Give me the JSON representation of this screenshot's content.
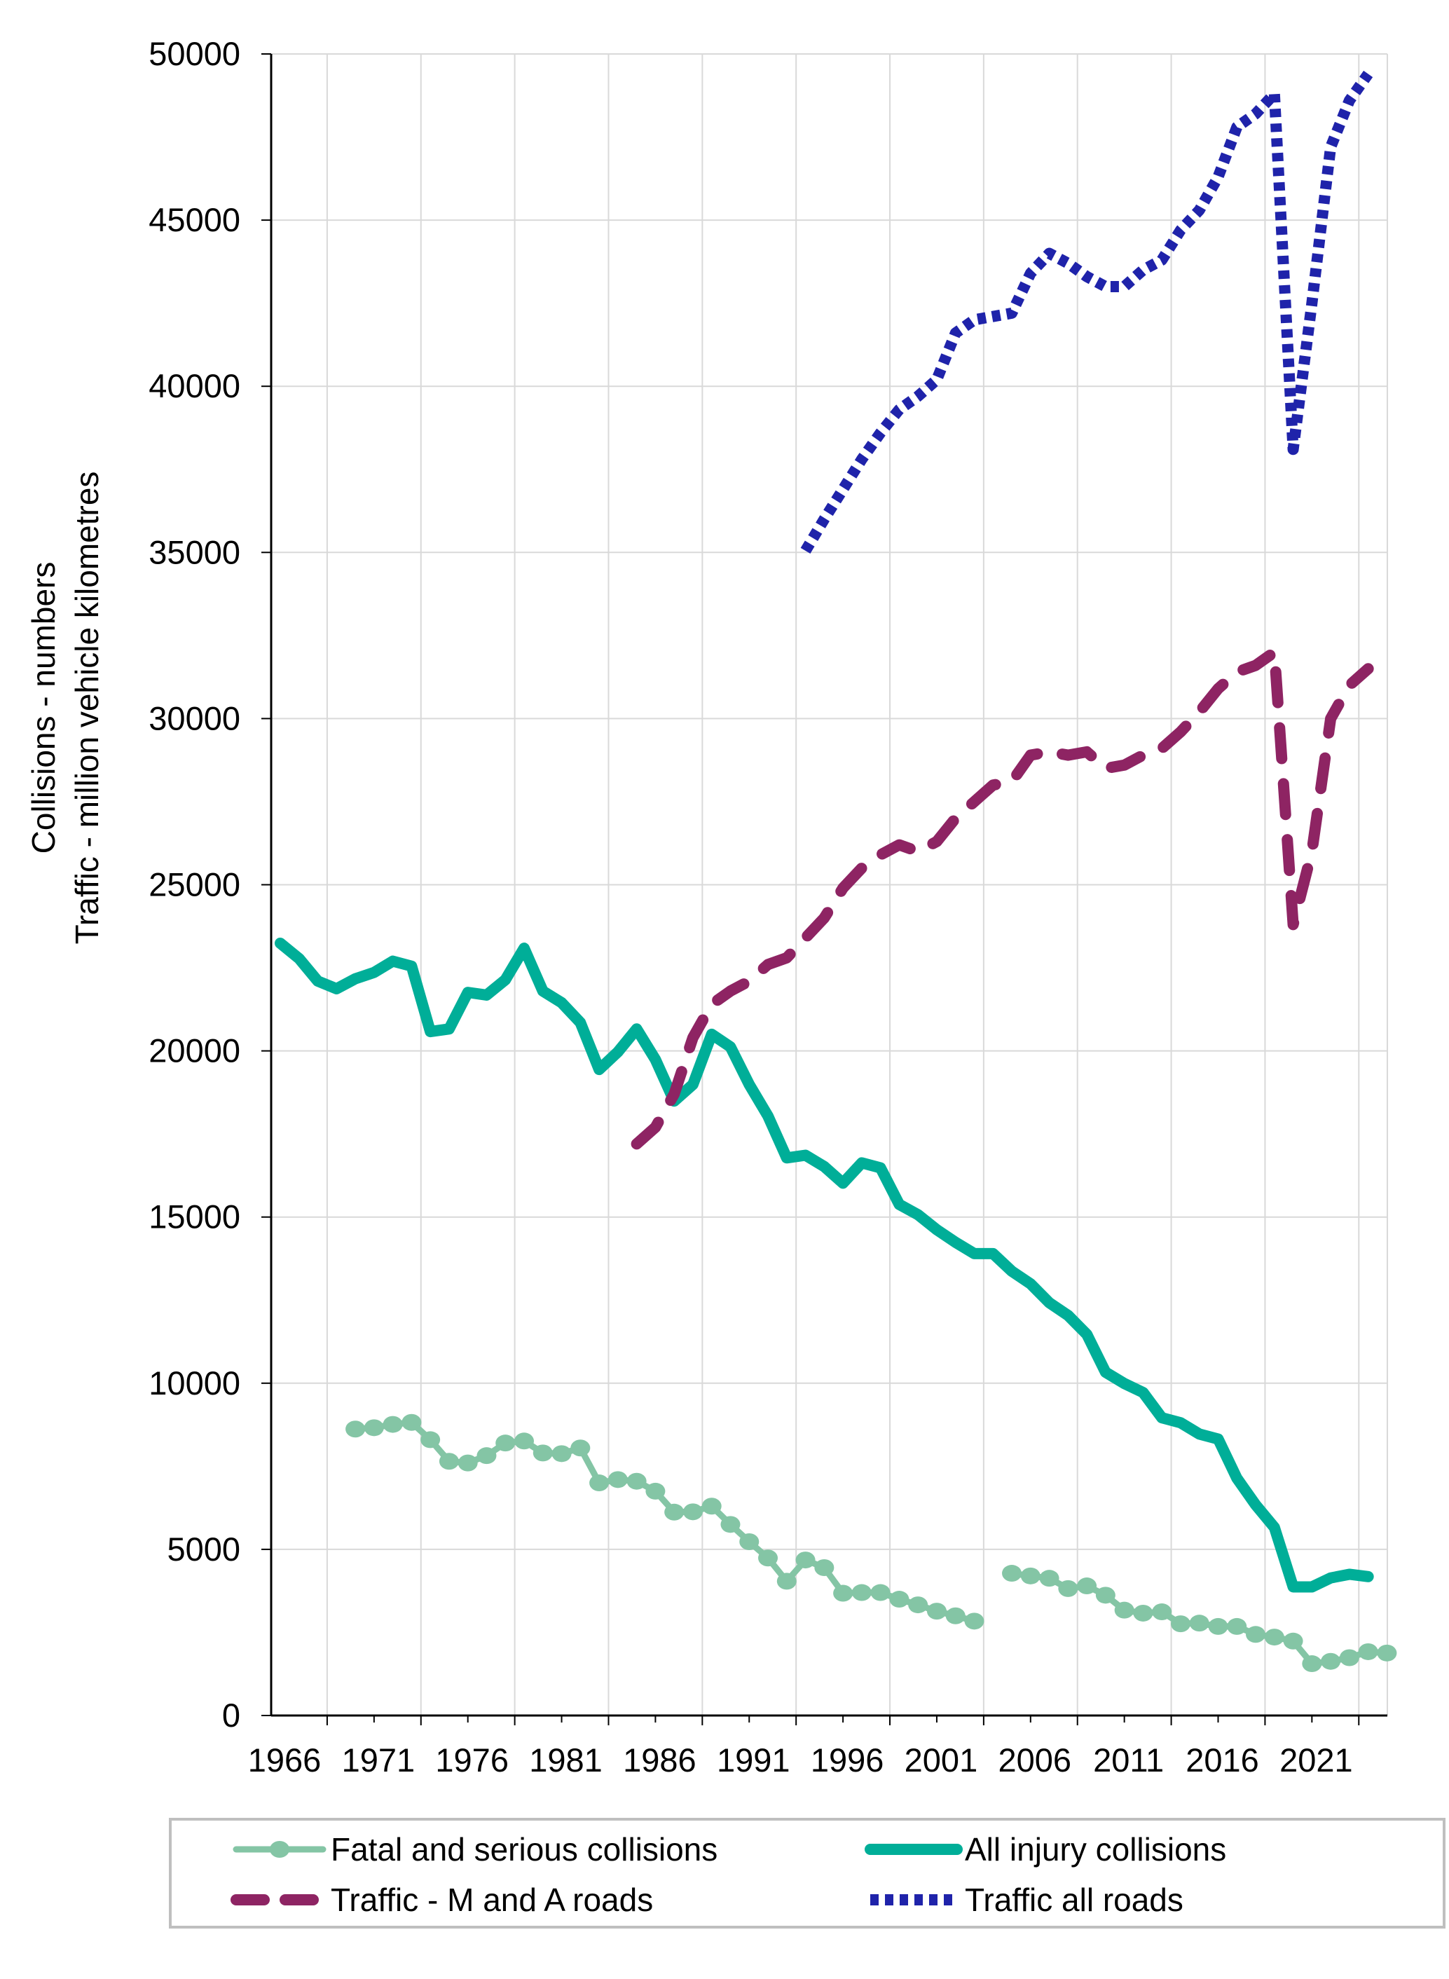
{
  "chart_data": {
    "type": "line",
    "title": "",
    "xlabel": "",
    "ylabel": [
      "Collisions - numbers",
      "Traffic -  million vehicle kilometres"
    ],
    "ylim": [
      0,
      50000
    ],
    "yticks": [
      0,
      5000,
      10000,
      15000,
      20000,
      25000,
      30000,
      35000,
      40000,
      45000,
      50000
    ],
    "xticks": [
      "1966",
      "1971",
      "1976",
      "1981",
      "1986",
      "1991",
      "1996",
      "2001",
      "2006",
      "2011",
      "2016",
      "2021"
    ],
    "grid": true,
    "legend_position": "bottom",
    "x_start": 1966,
    "x_end": 2024,
    "series": [
      {
        "name": "Fatal and serious collisions",
        "color": "#84C5A5",
        "style": "line-markers",
        "start": 1970,
        "values": [
          8620,
          8660,
          8760,
          8820,
          8300,
          7650,
          7600,
          7820,
          8200,
          8260,
          7900,
          7880,
          8050,
          7000,
          7100,
          7050,
          6750,
          6120,
          6130,
          6300,
          5750,
          5230,
          4740,
          4040,
          4680,
          4450,
          3680,
          3700,
          3700,
          3500,
          3330,
          3140,
          3000,
          2840,
          null,
          4280,
          4200,
          4130,
          3820,
          3900,
          3620,
          3170,
          3080,
          3120,
          2760,
          2780,
          2680,
          2680,
          2440,
          2360,
          2240,
          1560,
          1630,
          1740,
          1920,
          1880
        ]
      },
      {
        "name": "All injury collisions",
        "color": "#00AE98",
        "style": "solid",
        "start": 1966,
        "values": [
          23240,
          22780,
          22100,
          21870,
          22170,
          22360,
          22700,
          22550,
          20580,
          20660,
          21760,
          21680,
          22140,
          23090,
          21800,
          21450,
          20850,
          19440,
          19970,
          20660,
          19740,
          18490,
          18990,
          20500,
          20120,
          18990,
          18040,
          16780,
          16860,
          16520,
          16020,
          16630,
          16480,
          15380,
          15070,
          14620,
          14240,
          13900,
          13900,
          13370,
          12990,
          12420,
          12040,
          11470,
          10330,
          9990,
          9720,
          8960,
          8810,
          8470,
          8320,
          7140,
          6340,
          5660,
          3870,
          3870,
          4140,
          4250,
          4180
        ]
      },
      {
        "name": "Traffic - M and A roads",
        "color": "#8E2463",
        "style": "dashed",
        "start": 1985,
        "values": [
          17200,
          17700,
          18700,
          20400,
          21400,
          21800,
          22100,
          22600,
          22800,
          23400,
          24000,
          24900,
          25500,
          25900,
          26200,
          26000,
          26300,
          27000,
          27500,
          28000,
          28100,
          28900,
          29000,
          28900,
          29000,
          28500,
          28600,
          28900,
          29100,
          29600,
          30200,
          30900,
          31400,
          31600,
          32000,
          23800,
          26000,
          30000,
          31000,
          31500
        ]
      },
      {
        "name": "Traffic all roads",
        "color": "#1F23AA",
        "style": "dotted",
        "start": 1994,
        "values": [
          35050,
          36000,
          36900,
          37800,
          38600,
          39300,
          39700,
          40200,
          41600,
          42000,
          42100,
          42200,
          43400,
          44000,
          43700,
          43300,
          43000,
          43000,
          43500,
          43800,
          44700,
          45300,
          46300,
          47800,
          48200,
          48800,
          38100,
          42500,
          47200,
          48600,
          49400
        ]
      }
    ]
  }
}
